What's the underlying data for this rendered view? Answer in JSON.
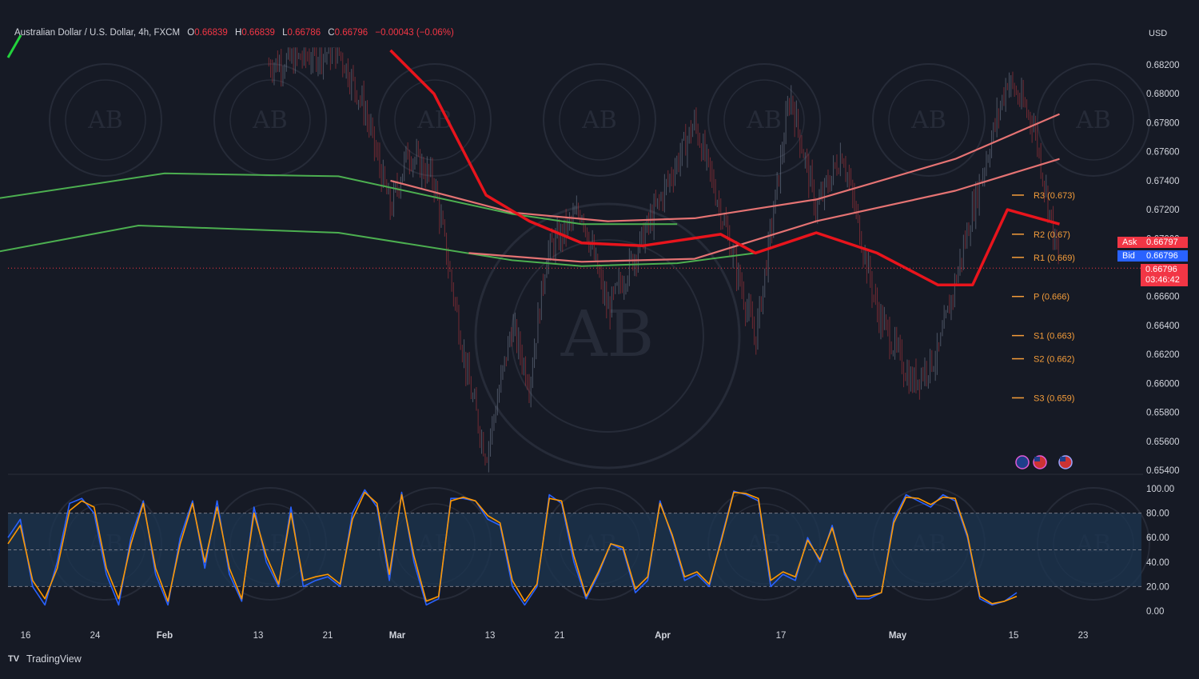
{
  "header": {
    "symbol": "Australian Dollar / U.S. Dollar, 4h, FXCM",
    "open_label": "O",
    "open": "0.66839",
    "high_label": "H",
    "high": "0.66839",
    "low_label": "L",
    "low": "0.66786",
    "close_label": "C",
    "close": "0.66796",
    "change": "−0.00043 (−0.06%)"
  },
  "currency": "USD",
  "quote": {
    "ask_label": "Ask",
    "ask": "0.66797",
    "bid_label": "Bid",
    "bid": "0.66796",
    "last": "0.66796",
    "countdown": "03:46:42"
  },
  "brand": "TradingView",
  "colors": {
    "background": "#161a25",
    "up": "#26a69a",
    "down": "#ef5350",
    "stoch_k": "#2962ff",
    "stoch_d": "#ff9800",
    "pivot": "#f59d3a"
  },
  "chart_data": [
    {
      "type": "candlestick",
      "title": "Australian Dollar / U.S. Dollar, 4h, FXCM",
      "ylim": [
        0.654,
        0.683
      ],
      "yticks": [
        "0.68200",
        "0.68000",
        "0.67800",
        "0.67600",
        "0.67400",
        "0.67200",
        "0.67000",
        "0.66800",
        "0.66600",
        "0.66400",
        "0.66200",
        "0.66000",
        "0.65800",
        "0.65600",
        "0.65400"
      ],
      "xticks": [
        "16",
        "24",
        "Feb",
        "13",
        "21",
        "Mar",
        "13",
        "21",
        "Apr",
        "17",
        "May",
        "15",
        "23"
      ],
      "price_path": [
        {
          "x": "Feb 13",
          "y": 0.682
        },
        {
          "x": "Feb 21",
          "y": 0.683
        },
        {
          "x": "Feb 24",
          "y": 0.679
        },
        {
          "x": "Feb 27",
          "y": 0.672
        },
        {
          "x": "Mar 1",
          "y": 0.676
        },
        {
          "x": "Mar 4",
          "y": 0.674
        },
        {
          "x": "Mar 8",
          "y": 0.66
        },
        {
          "x": "Mar 10",
          "y": 0.655
        },
        {
          "x": "Mar 13",
          "y": 0.664
        },
        {
          "x": "Mar 15",
          "y": 0.66
        },
        {
          "x": "Mar 17",
          "y": 0.669
        },
        {
          "x": "Mar 21",
          "y": 0.672
        },
        {
          "x": "Mar 24",
          "y": 0.665
        },
        {
          "x": "Mar 28",
          "y": 0.67
        },
        {
          "x": "Apr 3",
          "y": 0.678
        },
        {
          "x": "Apr 6",
          "y": 0.672
        },
        {
          "x": "Apr 10",
          "y": 0.663
        },
        {
          "x": "Apr 14",
          "y": 0.68
        },
        {
          "x": "Apr 17",
          "y": 0.672
        },
        {
          "x": "Apr 20",
          "y": 0.676
        },
        {
          "x": "Apr 24",
          "y": 0.665
        },
        {
          "x": "Apr 28",
          "y": 0.66
        },
        {
          "x": "May 1",
          "y": 0.662
        },
        {
          "x": "May 5",
          "y": 0.672
        },
        {
          "x": "May 9",
          "y": 0.681
        },
        {
          "x": "May 12",
          "y": 0.678
        },
        {
          "x": "May 15",
          "y": 0.668
        }
      ],
      "moving_averages": [
        {
          "color": "green",
          "points": [
            {
              "x": "Jan 12",
              "y": 0.6727
            },
            {
              "x": "Feb 1",
              "y": 0.6745
            },
            {
              "x": "Feb 21",
              "y": 0.6743
            },
            {
              "x": "Mar 13",
              "y": 0.6717
            },
            {
              "x": "Mar 21",
              "y": 0.671
            },
            {
              "x": "Apr 1",
              "y": 0.671
            }
          ]
        },
        {
          "color": "green",
          "points": [
            {
              "x": "Jan 12",
              "y": 0.669
            },
            {
              "x": "Jan 29",
              "y": 0.6709
            },
            {
              "x": "Feb 21",
              "y": 0.6704
            },
            {
              "x": "Mar 13",
              "y": 0.6685
            },
            {
              "x": "Mar 21",
              "y": 0.6681
            },
            {
              "x": "Apr 1",
              "y": 0.6683
            },
            {
              "x": "Apr 10",
              "y": 0.669
            }
          ]
        },
        {
          "color": "salmon",
          "points": [
            {
              "x": "Feb 27",
              "y": 0.674
            },
            {
              "x": "Mar 13",
              "y": 0.6718
            },
            {
              "x": "Mar 24",
              "y": 0.6712
            },
            {
              "x": "Apr 3",
              "y": 0.6714
            },
            {
              "x": "Apr 17",
              "y": 0.6727
            },
            {
              "x": "May 3",
              "y": 0.6755
            },
            {
              "x": "May 15",
              "y": 0.6786
            }
          ]
        },
        {
          "color": "salmon",
          "points": [
            {
              "x": "Mar 8",
              "y": 0.669
            },
            {
              "x": "Mar 21",
              "y": 0.6684
            },
            {
              "x": "Apr 3",
              "y": 0.6686
            },
            {
              "x": "Apr 17",
              "y": 0.6712
            },
            {
              "x": "May 3",
              "y": 0.6733
            },
            {
              "x": "May 15",
              "y": 0.6755
            }
          ]
        },
        {
          "color": "red",
          "points": [
            {
              "x": "Feb 27",
              "y": 0.683
            },
            {
              "x": "Mar 4",
              "y": 0.68
            },
            {
              "x": "Mar 10",
              "y": 0.673
            },
            {
              "x": "Mar 15",
              "y": 0.6712
            },
            {
              "x": "Mar 21",
              "y": 0.6697
            },
            {
              "x": "Mar 28",
              "y": 0.6695
            },
            {
              "x": "Apr 6",
              "y": 0.6703
            },
            {
              "x": "Apr 10",
              "y": 0.669
            },
            {
              "x": "Apr 17",
              "y": 0.6704
            },
            {
              "x": "Apr 24",
              "y": 0.669
            },
            {
              "x": "May 1",
              "y": 0.6668
            },
            {
              "x": "May 5",
              "y": 0.6668
            },
            {
              "x": "May 9",
              "y": 0.672
            },
            {
              "x": "May 15",
              "y": 0.671
            }
          ]
        }
      ],
      "pivot_levels": [
        {
          "label": "R3 (0.673)",
          "value": 0.673
        },
        {
          "label": "R2 (0.67)",
          "value": 0.6703
        },
        {
          "label": "R1 (0.669)",
          "value": 0.6687
        },
        {
          "label": "P (0.666)",
          "value": 0.666
        },
        {
          "label": "S1 (0.663)",
          "value": 0.6633
        },
        {
          "label": "S2 (0.662)",
          "value": 0.6617
        },
        {
          "label": "S3 (0.659)",
          "value": 0.659
        }
      ],
      "last_price": 0.66796
    },
    {
      "type": "line",
      "title": "",
      "ylim": [
        0,
        100
      ],
      "yticks": [
        "100.00",
        "80.00",
        "60.00",
        "40.00",
        "20.00",
        "0.00"
      ],
      "bands": [
        20,
        50,
        80
      ],
      "series": [
        {
          "color": "blue",
          "values": [
            60,
            75,
            20,
            5,
            40,
            88,
            92,
            80,
            30,
            5,
            60,
            90,
            30,
            5,
            60,
            90,
            35,
            90,
            30,
            8,
            85,
            40,
            20,
            85,
            20,
            25,
            28,
            20,
            80,
            99,
            85,
            25,
            97,
            40,
            5,
            10,
            92,
            92,
            90,
            75,
            70,
            20,
            5,
            20,
            95,
            88,
            40,
            10,
            30,
            55,
            50,
            15,
            25,
            90,
            60,
            25,
            30,
            20,
            60,
            98,
            95,
            90,
            20,
            30,
            25,
            60,
            40,
            70,
            30,
            10,
            10,
            15,
            75,
            95,
            90,
            85,
            95,
            90,
            60,
            10,
            5,
            8,
            15
          ]
        },
        {
          "color": "orange",
          "values": [
            55,
            70,
            25,
            10,
            35,
            82,
            90,
            85,
            35,
            10,
            55,
            88,
            35,
            8,
            55,
            88,
            40,
            85,
            35,
            10,
            80,
            45,
            22,
            80,
            25,
            28,
            30,
            22,
            75,
            97,
            88,
            30,
            95,
            45,
            8,
            12,
            90,
            93,
            90,
            78,
            72,
            25,
            8,
            22,
            92,
            90,
            45,
            12,
            32,
            55,
            52,
            18,
            28,
            88,
            62,
            28,
            32,
            22,
            58,
            97,
            96,
            92,
            25,
            32,
            28,
            58,
            42,
            68,
            32,
            12,
            12,
            15,
            72,
            93,
            92,
            87,
            93,
            92,
            62,
            12,
            6,
            8,
            12
          ]
        }
      ]
    }
  ]
}
